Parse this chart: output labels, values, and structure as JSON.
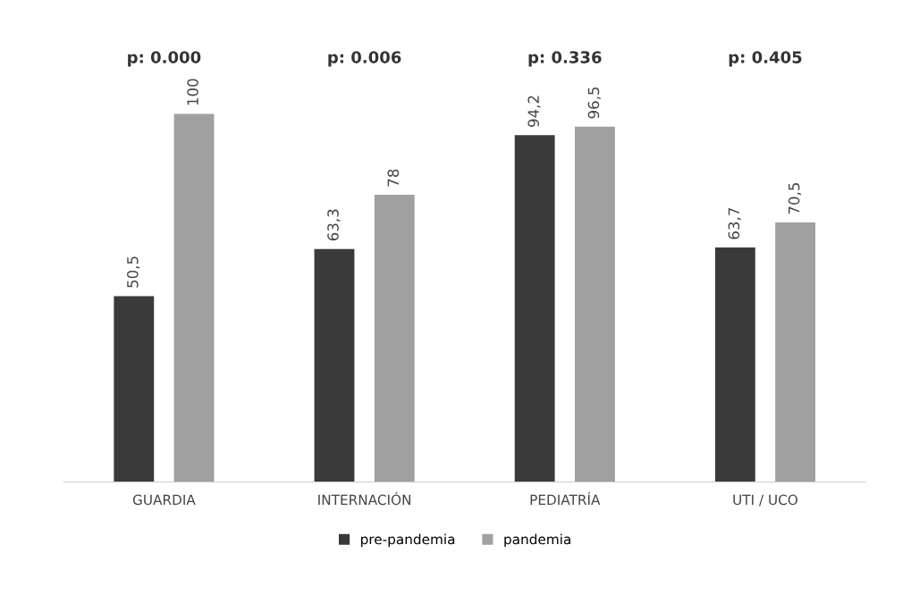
{
  "chart_data": {
    "type": "bar",
    "categories": [
      "GUARDIA",
      "INTERNACIÓN",
      "PEDIATRÍA",
      "UTI / UCO"
    ],
    "series": [
      {
        "name": "pre-pandemia",
        "color": "#3a3a3a",
        "values": [
          50.5,
          63.3,
          94.2,
          63.7
        ],
        "value_labels": [
          "50,5",
          "63,3",
          "94,2",
          "63,7"
        ]
      },
      {
        "name": "pandemia",
        "color": "#a0a0a0",
        "values": [
          100,
          78,
          96.5,
          70.5
        ],
        "value_labels": [
          "100",
          "78",
          "96,5",
          "70,5"
        ]
      }
    ],
    "annotations": [
      "p: 0.000",
      "p: 0.006",
      "p: 0.336",
      "p: 0.405"
    ],
    "legend": "bottom",
    "grid": false
  }
}
